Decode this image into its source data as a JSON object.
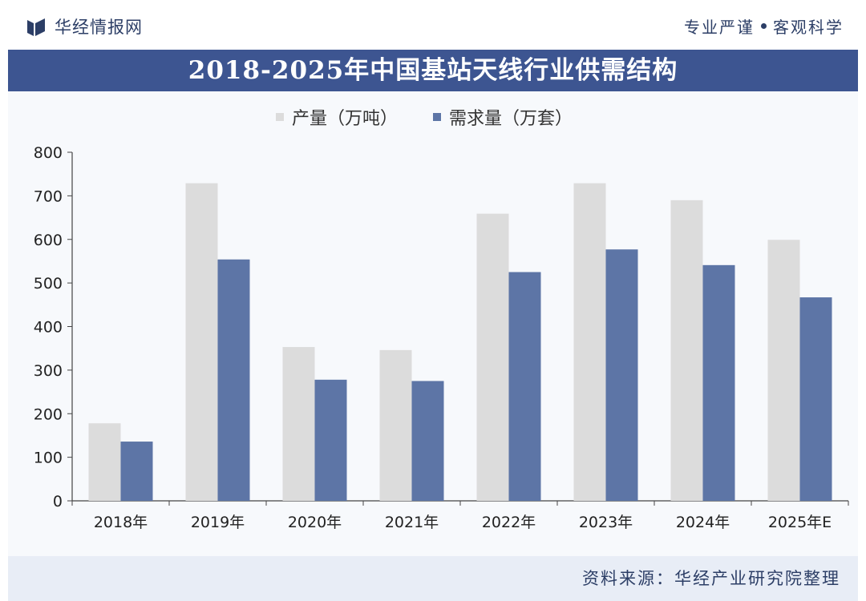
{
  "header": {
    "brand_name": "华经情报网",
    "slogan_left": "专业严谨",
    "slogan_right": "客观科学"
  },
  "title": "2018-2025年中国基站天线行业供需结构",
  "source": "资料来源：华经产业研究院整理",
  "colors": {
    "title_band": "#3d5591",
    "production": "#dcdcdc",
    "demand": "#5d75a6",
    "axis": "#444444"
  },
  "chart_data": {
    "type": "bar",
    "categories": [
      "2018年",
      "2019年",
      "2020年",
      "2021年",
      "2022年",
      "2023年",
      "2024年",
      "2025年E"
    ],
    "series": [
      {
        "name": "产量（万吨）",
        "values": [
          178,
          729,
          353,
          346,
          659,
          729,
          690,
          599
        ],
        "color": "#dcdcdc"
      },
      {
        "name": "需求量（万套）",
        "values": [
          136,
          554,
          278,
          275,
          525,
          577,
          541,
          467
        ],
        "color": "#5d75a6"
      }
    ],
    "ylim": [
      0,
      800
    ],
    "yticks": [
      "0",
      "100",
      "200",
      "300",
      "400",
      "500",
      "600",
      "700",
      "800"
    ],
    "legend_position": "top-left",
    "grid": false
  }
}
